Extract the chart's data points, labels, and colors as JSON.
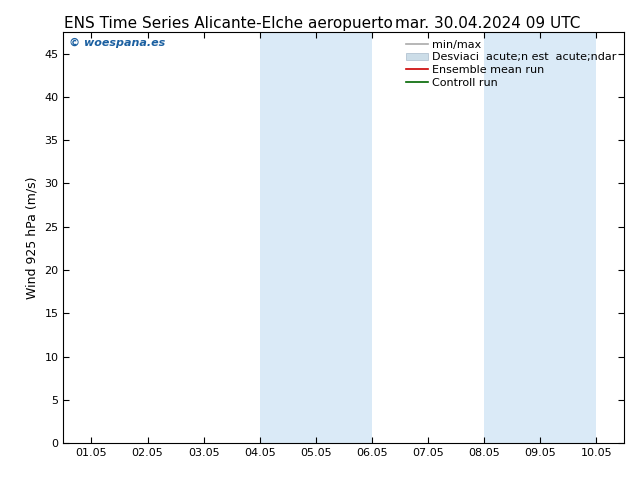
{
  "title_left": "ENS Time Series Alicante-Elche aeropuerto",
  "title_right": "mar. 30.04.2024 09 UTC",
  "ylabel": "Wind 925 hPa (m/s)",
  "ylim": [
    0,
    47.5
  ],
  "yticks": [
    0,
    5,
    10,
    15,
    20,
    25,
    30,
    35,
    40,
    45
  ],
  "xtick_labels": [
    "01.05",
    "02.05",
    "03.05",
    "04.05",
    "05.05",
    "06.05",
    "07.05",
    "08.05",
    "09.05",
    "10.05"
  ],
  "num_xticks": 10,
  "xlim": [
    0,
    10
  ],
  "shaded_bands": [
    {
      "xmin": 3.5,
      "xmax": 5.5,
      "color": "#daeaf7"
    },
    {
      "xmin": 7.5,
      "xmax": 9.5,
      "color": "#daeaf7"
    }
  ],
  "watermark": "© woespana.es",
  "watermark_color": "#1a5fa0",
  "legend_entries": [
    {
      "label": "min/max",
      "color": "#aaaaaa",
      "lw": 1.2,
      "ls": "-",
      "type": "line"
    },
    {
      "label": "Desviaci  acute;n est  acute;ndar",
      "color": "#ccdde8",
      "type": "patch"
    },
    {
      "label": "Ensemble mean run",
      "color": "#cc0000",
      "lw": 1.2,
      "ls": "-",
      "type": "line"
    },
    {
      "label": "Controll run",
      "color": "#006600",
      "lw": 1.2,
      "ls": "-",
      "type": "line"
    }
  ],
  "background_color": "#ffffff",
  "plot_bg_color": "#ffffff",
  "title_fontsize": 11,
  "axis_label_fontsize": 9,
  "tick_fontsize": 8,
  "legend_fontsize": 8
}
